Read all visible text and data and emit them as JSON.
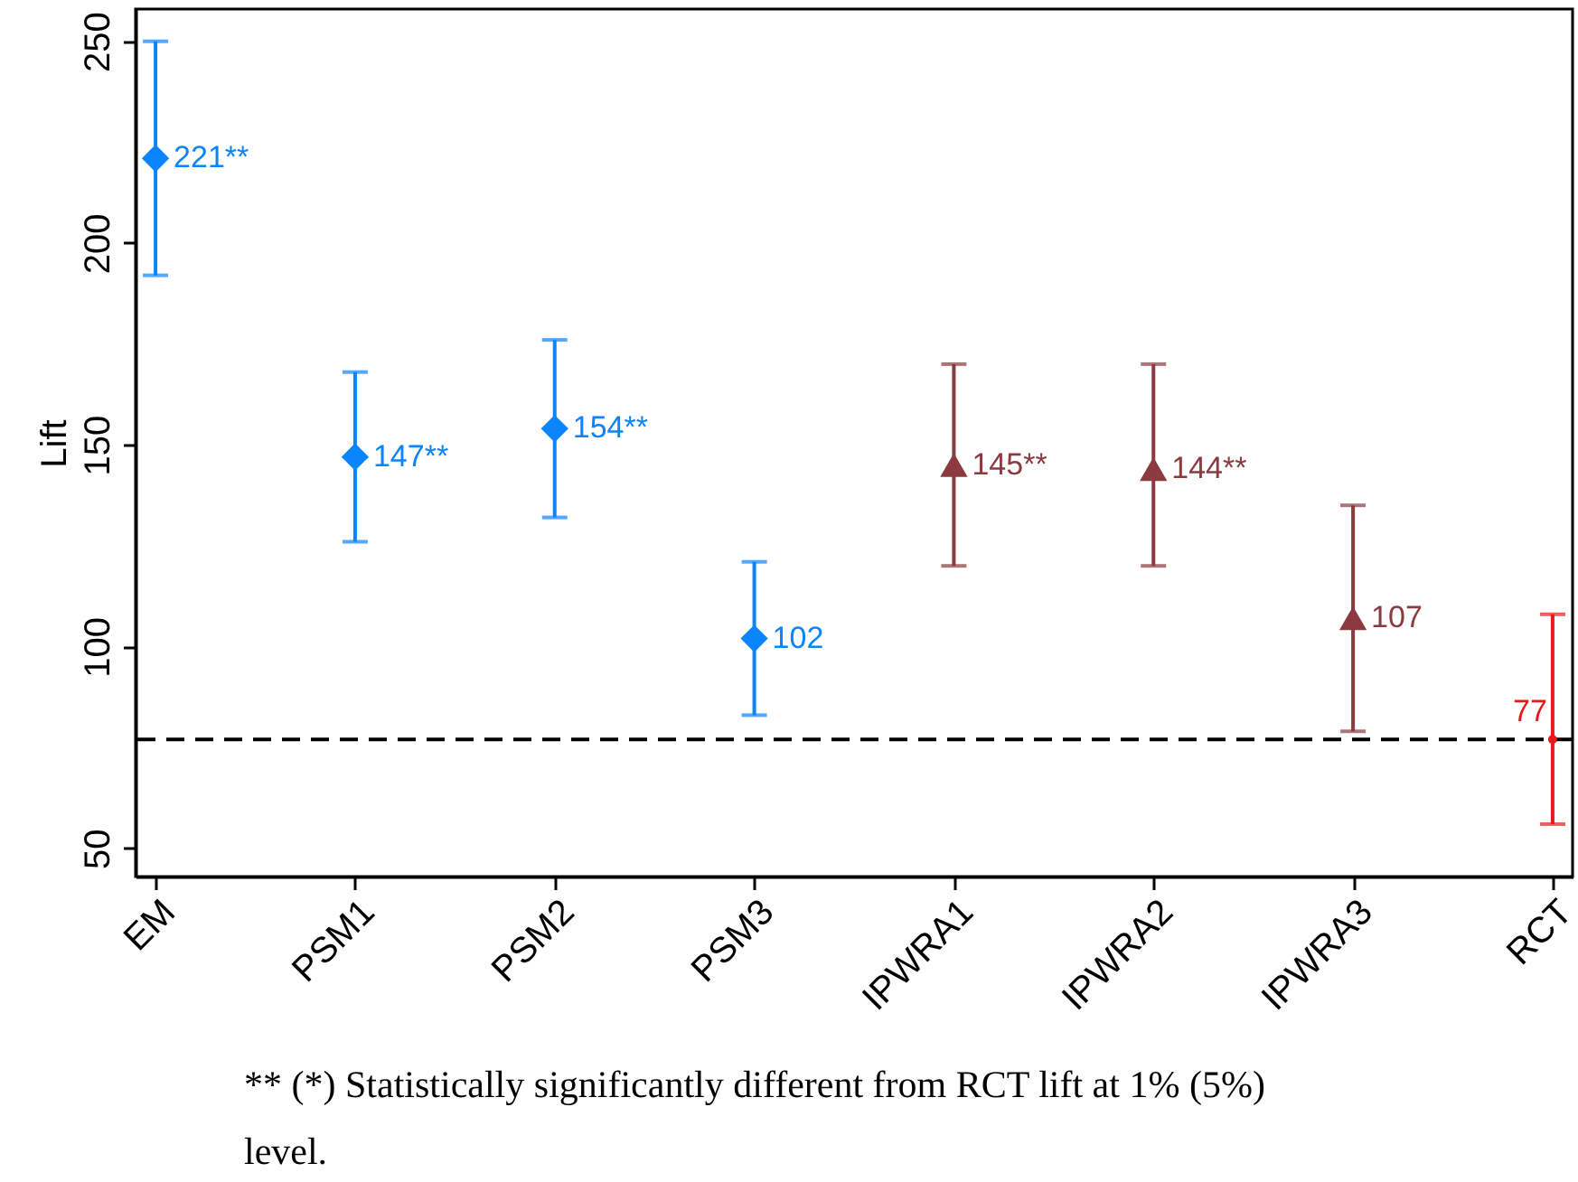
{
  "chart_data": {
    "type": "scatter",
    "ylabel": "Lift",
    "categories": [
      "EM",
      "PSM1",
      "PSM2",
      "PSM3",
      "IPWRA1",
      "IPWRA2",
      "IPWRA3",
      "RCT"
    ],
    "ylim": [
      43,
      258
    ],
    "yticks": [
      50,
      100,
      150,
      200,
      250
    ],
    "grid": false,
    "series": [
      {
        "color": "#0a84ff",
        "marker": "diamond",
        "values": [
          221,
          147,
          154,
          102,
          null,
          null,
          null,
          null
        ],
        "errors": [
          [
            192,
            250
          ],
          [
            126,
            168
          ],
          [
            132,
            176
          ],
          [
            83,
            121
          ],
          null,
          null,
          null,
          null
        ],
        "value_labels": [
          "221**",
          "147**",
          "154**",
          "102",
          null,
          null,
          null,
          null
        ]
      },
      {
        "color": "#8b3a40",
        "marker": "triangle",
        "values": [
          null,
          null,
          null,
          null,
          145,
          144,
          107,
          null
        ],
        "errors": [
          null,
          null,
          null,
          null,
          [
            120,
            170
          ],
          [
            120,
            170
          ],
          [
            79,
            135
          ],
          null
        ],
        "value_labels": [
          null,
          null,
          null,
          null,
          "145**",
          "144**",
          "107",
          null
        ]
      },
      {
        "color": "#e8191a",
        "marker": "circle",
        "values": [
          null,
          null,
          null,
          null,
          null,
          null,
          null,
          77
        ],
        "errors": [
          null,
          null,
          null,
          null,
          null,
          null,
          null,
          [
            56,
            108
          ]
        ],
        "value_labels": [
          null,
          null,
          null,
          null,
          null,
          null,
          null,
          "77"
        ]
      }
    ],
    "ref_lines": [
      {
        "axis": "y",
        "value": 77,
        "color": "#000000",
        "line_style": "dashed"
      }
    ],
    "annotations": [
      "** (*) Statistically significantly different from RCT lift at 1% (5%) level."
    ]
  }
}
